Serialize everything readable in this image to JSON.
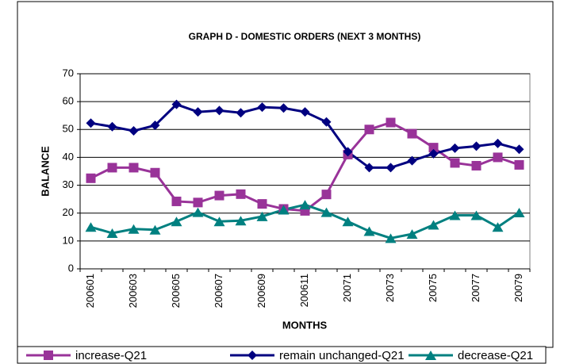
{
  "chart_data": {
    "type": "line",
    "title": "GRAPH D - DOMESTIC ORDERS (NEXT 3 MONTHS)",
    "y_label": "BALANCE",
    "x_label": "MONTHS",
    "categories": [
      "200601",
      null,
      "200603",
      null,
      "200605",
      null,
      "200607",
      null,
      "200609",
      null,
      "200611",
      null,
      "20071",
      null,
      "20073",
      null,
      "20075",
      null,
      "20077",
      null,
      "20079"
    ],
    "series": [
      {
        "name": "increase-Q21",
        "color": "#993399",
        "marker": "square",
        "values": [
          32.5,
          36.3,
          36.3,
          34.5,
          24.2,
          23.8,
          26.3,
          26.8,
          23.3,
          21.5,
          20.8,
          26.7,
          41,
          50,
          52.5,
          48.5,
          43.5,
          38,
          37,
          40,
          37.3
        ]
      },
      {
        "name": "remain unchanged-Q21",
        "color": "#000080",
        "marker": "diamond",
        "values": [
          52.3,
          51,
          49.5,
          51.5,
          59,
          56.3,
          56.8,
          56,
          58,
          57.7,
          56.3,
          52.7,
          42,
          36.3,
          36.3,
          38.8,
          41.3,
          43.3,
          44,
          45,
          42.9
        ]
      },
      {
        "name": "decrease-Q21",
        "color": "#008080",
        "marker": "triangle",
        "values": [
          15,
          12.8,
          14.3,
          14,
          17,
          20.3,
          17,
          17.3,
          18.8,
          21.2,
          23,
          20.3,
          17,
          13.5,
          11,
          12.5,
          15.8,
          19.2,
          19.2,
          15,
          20.2
        ]
      }
    ],
    "ylim": [
      0,
      70
    ],
    "yticks": [
      0,
      10,
      20,
      30,
      40,
      50,
      60,
      70
    ],
    "grid": true,
    "legend": "bottom"
  }
}
